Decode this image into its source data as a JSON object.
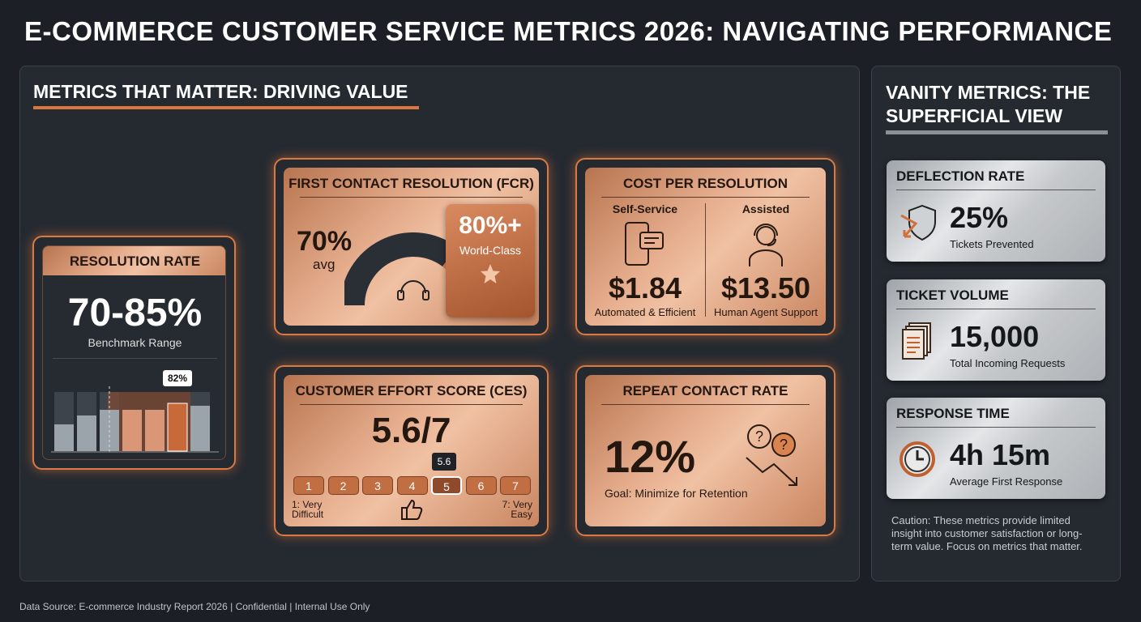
{
  "header": {
    "title": "E-COMMERCE CUSTOMER SERVICE METRICS 2026: NAVIGATING PERFORMANCE"
  },
  "metrics_that_matter": {
    "heading": "METRICS THAT MATTER: DRIVING VALUE",
    "resolution_rate": {
      "title": "RESOLUTION RATE",
      "value": "70-85%",
      "caption": "Benchmark Range",
      "highlight": "82%"
    },
    "fcr": {
      "title": "FIRST CONTACT RESOLUTION (FCR)",
      "avg_value": "70%",
      "avg_label": "avg",
      "target_value": "80%+",
      "target_label": "World-Class"
    },
    "cost": {
      "title": "COST PER RESOLUTION",
      "columns": [
        {
          "heading": "Self-Service",
          "value": "$1.84",
          "caption": "Automated & Efficient"
        },
        {
          "heading": "Assisted",
          "value": "$13.50",
          "caption": "Human Agent Support"
        }
      ]
    },
    "ces": {
      "title": "CUSTOMER EFFORT SCORE (CES)",
      "value": "5.6/7",
      "marker": "5.6",
      "scale": [
        1,
        2,
        3,
        4,
        5,
        6,
        7
      ],
      "low_label": "1: Very Difficult",
      "high_label": "7: Very Easy"
    },
    "repeat": {
      "title": "REPEAT CONTACT RATE",
      "value": "12%",
      "caption": "Goal: Minimize for Retention"
    }
  },
  "vanity_metrics": {
    "heading": "VANITY METRICS: THE SUPERFICIAL VIEW",
    "cards": [
      {
        "title": "DEFLECTION RATE",
        "value": "25%",
        "caption": "Tickets Prevented"
      },
      {
        "title": "TICKET VOLUME",
        "value": "15,000",
        "caption": "Total Incoming Requests"
      },
      {
        "title": "RESPONSE TIME",
        "value": "4h 15m",
        "caption": "Average First Response"
      }
    ],
    "caution": "Caution: These metrics provide limited insight into customer satisfaction or long-term value. Focus on metrics that matter."
  },
  "footer": {
    "source": "Data Source: E-commerce Industry Report 2026 | Confidential | Internal Use Only"
  }
}
